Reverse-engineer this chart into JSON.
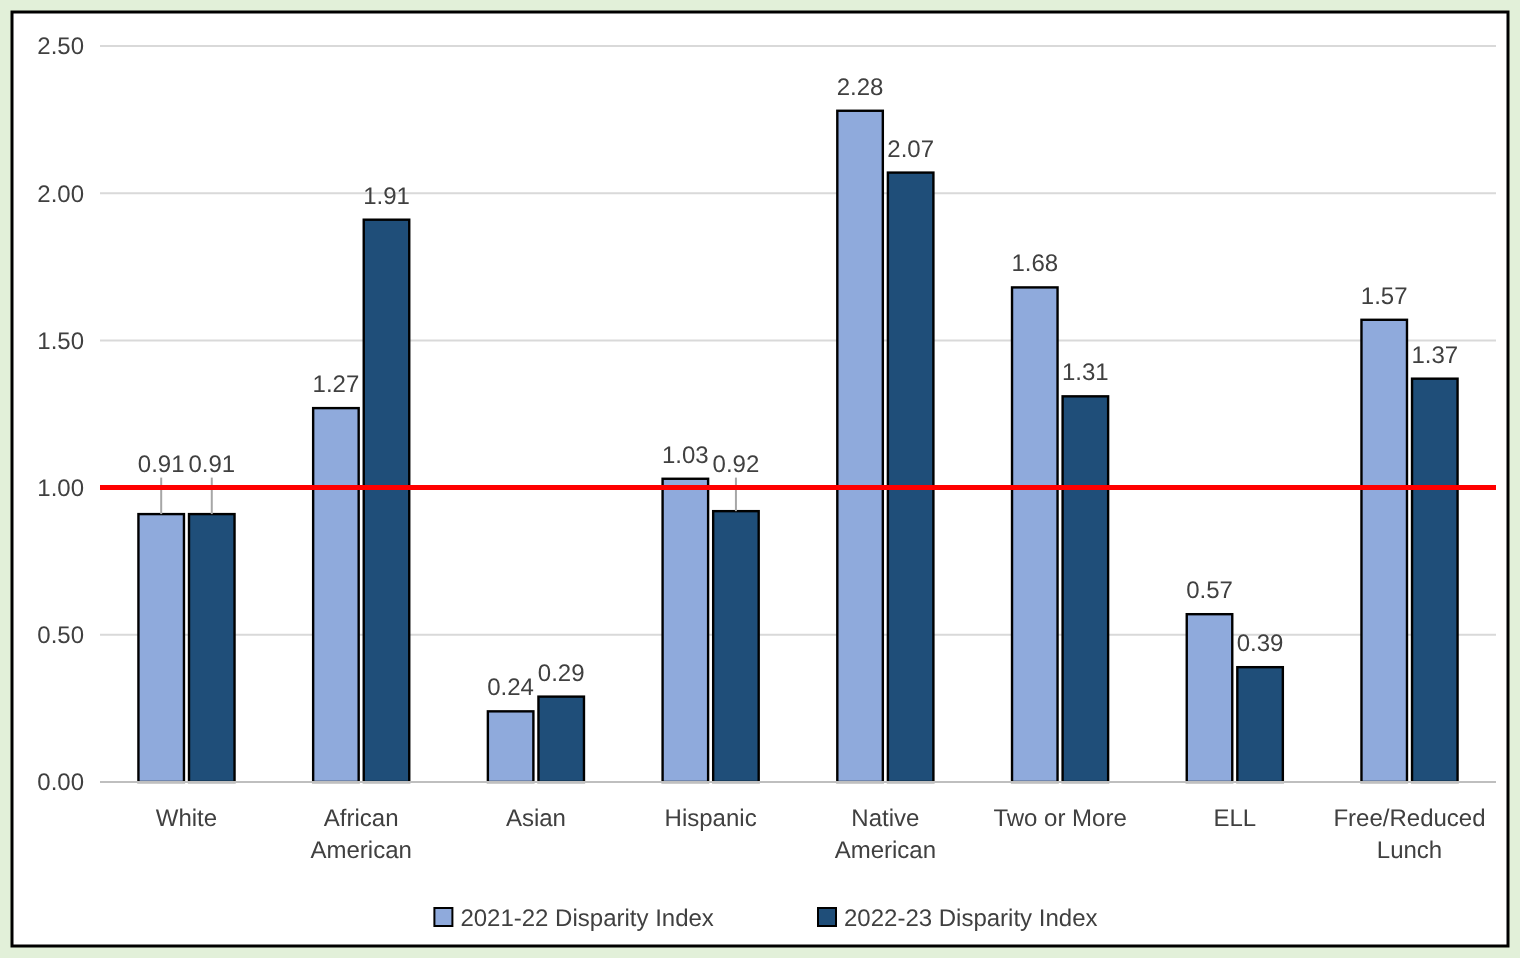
{
  "chart_data": {
    "type": "bar",
    "categories": [
      "White",
      "African American",
      "Asian",
      "Hispanic",
      "Native American",
      "Two or More",
      "ELL",
      "Free/Reduced Lunch"
    ],
    "series": [
      {
        "name": "2021-22 Disparity Index",
        "color": "#8faadc",
        "values": [
          0.91,
          1.27,
          0.24,
          1.03,
          2.28,
          1.68,
          0.57,
          1.57
        ]
      },
      {
        "name": "2022-23 Disparity Index",
        "color": "#1f4e79",
        "values": [
          0.91,
          1.91,
          0.29,
          0.92,
          2.07,
          1.31,
          0.39,
          1.37
        ]
      }
    ],
    "ylim": [
      0,
      2.5
    ],
    "yticks": [
      {
        "value": 0,
        "label": "0.00"
      },
      {
        "value": 0.5,
        "label": "0.50"
      },
      {
        "value": 1,
        "label": "1.00"
      },
      {
        "value": 1.5,
        "label": "1.50"
      },
      {
        "value": 2,
        "label": "2.00"
      },
      {
        "value": 2.5,
        "label": "2.50"
      }
    ],
    "ref_lines": [
      {
        "axis": "y",
        "value": 1,
        "color": "#ff0000"
      }
    ],
    "grid": "y",
    "legend": "bottom",
    "data_labels": true
  }
}
